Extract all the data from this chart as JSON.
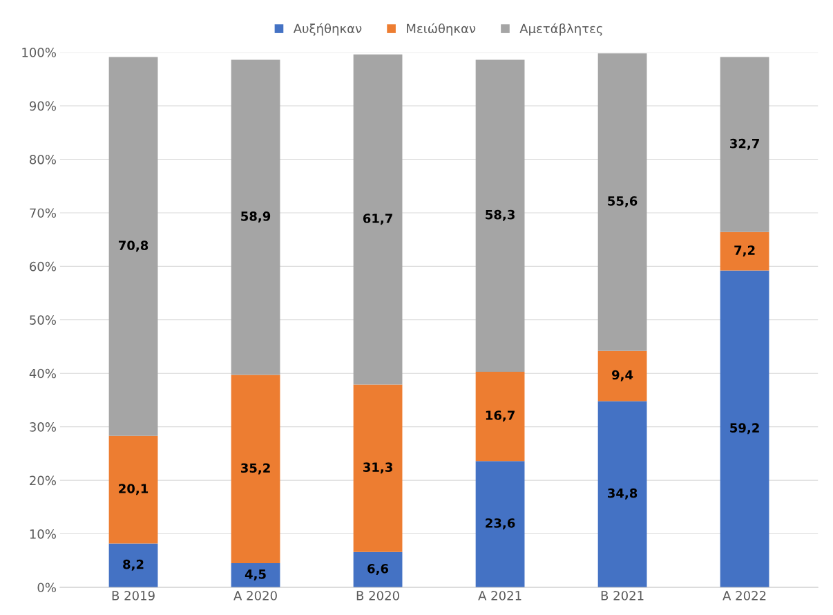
{
  "chart_data": {
    "type": "bar",
    "stacked": true,
    "categories": [
      "Β 2019",
      "Α 2020",
      "Β 2020",
      "Α 2021",
      "Β 2021",
      "Α 2022"
    ],
    "series": [
      {
        "name": "Αυξήθηκαν",
        "color": "#4472c4",
        "values": [
          8.2,
          4.5,
          6.6,
          23.6,
          34.8,
          59.2
        ],
        "value_labels": [
          "8,2",
          "4,5",
          "6,6",
          "23,6",
          "34,8",
          "59,2"
        ]
      },
      {
        "name": "Μειώθηκαν",
        "color": "#ed7d31",
        "values": [
          20.1,
          35.2,
          31.3,
          16.7,
          9.4,
          7.2
        ],
        "value_labels": [
          "20,1",
          "35,2",
          "31,3",
          "16,7",
          "9,4",
          "7,2"
        ]
      },
      {
        "name": "Αμετάβλητες",
        "color": "#a5a5a5",
        "values": [
          70.8,
          58.9,
          61.7,
          58.3,
          55.6,
          32.7
        ],
        "value_labels": [
          "70,8",
          "58,9",
          "61,7",
          "58,3",
          "55,6",
          "32,7"
        ]
      }
    ],
    "ylim": [
      0,
      100
    ],
    "yticks": [
      {
        "value": 0,
        "label": "0%"
      },
      {
        "value": 10,
        "label": "10%"
      },
      {
        "value": 20,
        "label": "20%"
      },
      {
        "value": 30,
        "label": "30%"
      },
      {
        "value": 40,
        "label": "40%"
      },
      {
        "value": 50,
        "label": "50%"
      },
      {
        "value": 60,
        "label": "60%"
      },
      {
        "value": 70,
        "label": "70%"
      },
      {
        "value": 80,
        "label": "80%"
      },
      {
        "value": 90,
        "label": "90%"
      },
      {
        "value": 100,
        "label": "100%"
      }
    ],
    "grid": "y",
    "legend": "top"
  }
}
